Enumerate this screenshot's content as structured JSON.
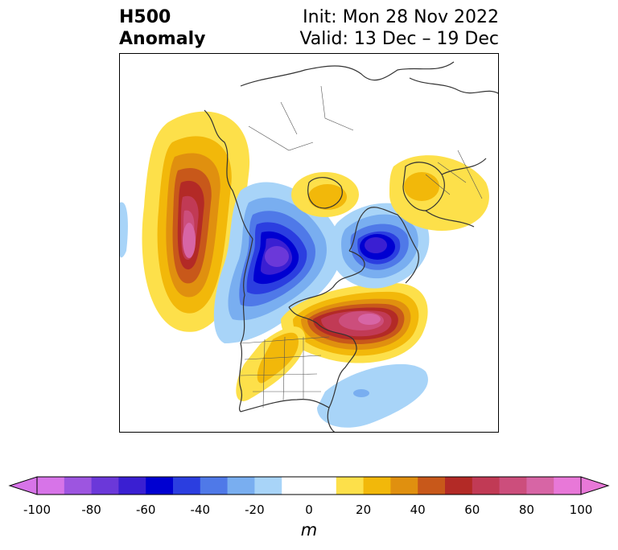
{
  "title": {
    "left_line1": "H500",
    "left_line2": "Anomaly",
    "right_line1": "Init: Mon 28 Nov 2022",
    "right_line2": "Valid: 13 Dec – 19 Dec"
  },
  "colorbar": {
    "unit": "m",
    "min": -100,
    "max": 100,
    "step": 10,
    "extend": "both",
    "ticks": [
      "-100",
      "-80",
      "-60",
      "-40",
      "-20",
      "0",
      "20",
      "40",
      "60",
      "80",
      "100"
    ],
    "colors": [
      "#d774e8",
      "#9d55e0",
      "#6b38d9",
      "#3a1fd2",
      "#0000d1",
      "#2b3ee0",
      "#4f79e8",
      "#79aef0",
      "#a8d4f8",
      "#ffffff",
      "#ffffff",
      "#fde04a",
      "#f2b80a",
      "#e0900f",
      "#c8581a",
      "#b32a26",
      "#c13a55",
      "#cc4e7c",
      "#d765a5",
      "#e878d8"
    ]
  },
  "map": {
    "projection": "polar-stereographic",
    "region": "Northern Hemisphere / North America",
    "anomalies": [
      {
        "name": "ridge-west-coast",
        "sign": "positive",
        "peak_m": 90
      },
      {
        "name": "trough-western-canada",
        "sign": "negative",
        "peak_m": -90
      },
      {
        "name": "ridge-hudson-bay",
        "sign": "positive",
        "peak_m": 80
      },
      {
        "name": "trough-greenland",
        "sign": "negative",
        "peak_m": -70
      },
      {
        "name": "ridge-arctic",
        "sign": "positive",
        "peak_m": 30
      },
      {
        "name": "ridge-scandinavia",
        "sign": "positive",
        "peak_m": 20
      },
      {
        "name": "trough-atlantic",
        "sign": "negative",
        "peak_m": -30
      },
      {
        "name": "trough-pacific-edge",
        "sign": "negative",
        "peak_m": -20
      }
    ]
  }
}
